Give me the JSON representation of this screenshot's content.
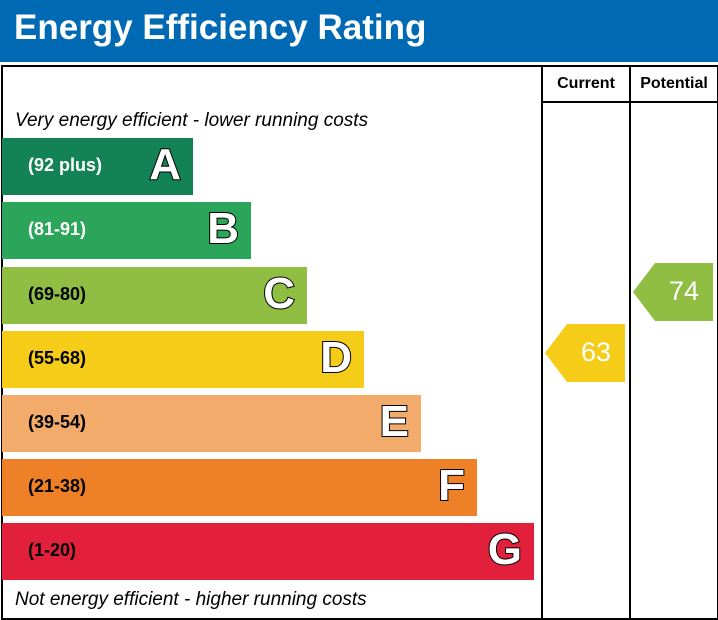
{
  "header": {
    "title": "Energy Efficiency Rating",
    "color": "#0069b4"
  },
  "columns": {
    "current": "Current",
    "potential": "Potential"
  },
  "notes": {
    "top": "Very energy efficient - lower running costs",
    "bottom": "Not energy efficient - higher running costs"
  },
  "chart_data": {
    "type": "bar",
    "categories": [
      "A",
      "B",
      "C",
      "D",
      "E",
      "F",
      "G"
    ],
    "ranges": [
      "(92 plus)",
      "(81-91)",
      "(69-80)",
      "(55-68)",
      "(39-54)",
      "(21-38)",
      "(1-20)"
    ],
    "colors": [
      "#138256",
      "#2ba559",
      "#8fbe43",
      "#f5cc17",
      "#f2ab6b",
      "#ee8127",
      "#e2203c"
    ],
    "current": {
      "label": "Current",
      "value": "63",
      "band": "D",
      "color": "#f5cc17"
    },
    "potential": {
      "label": "Potential",
      "value": "74",
      "band": "C",
      "color": "#8fbe43"
    }
  }
}
